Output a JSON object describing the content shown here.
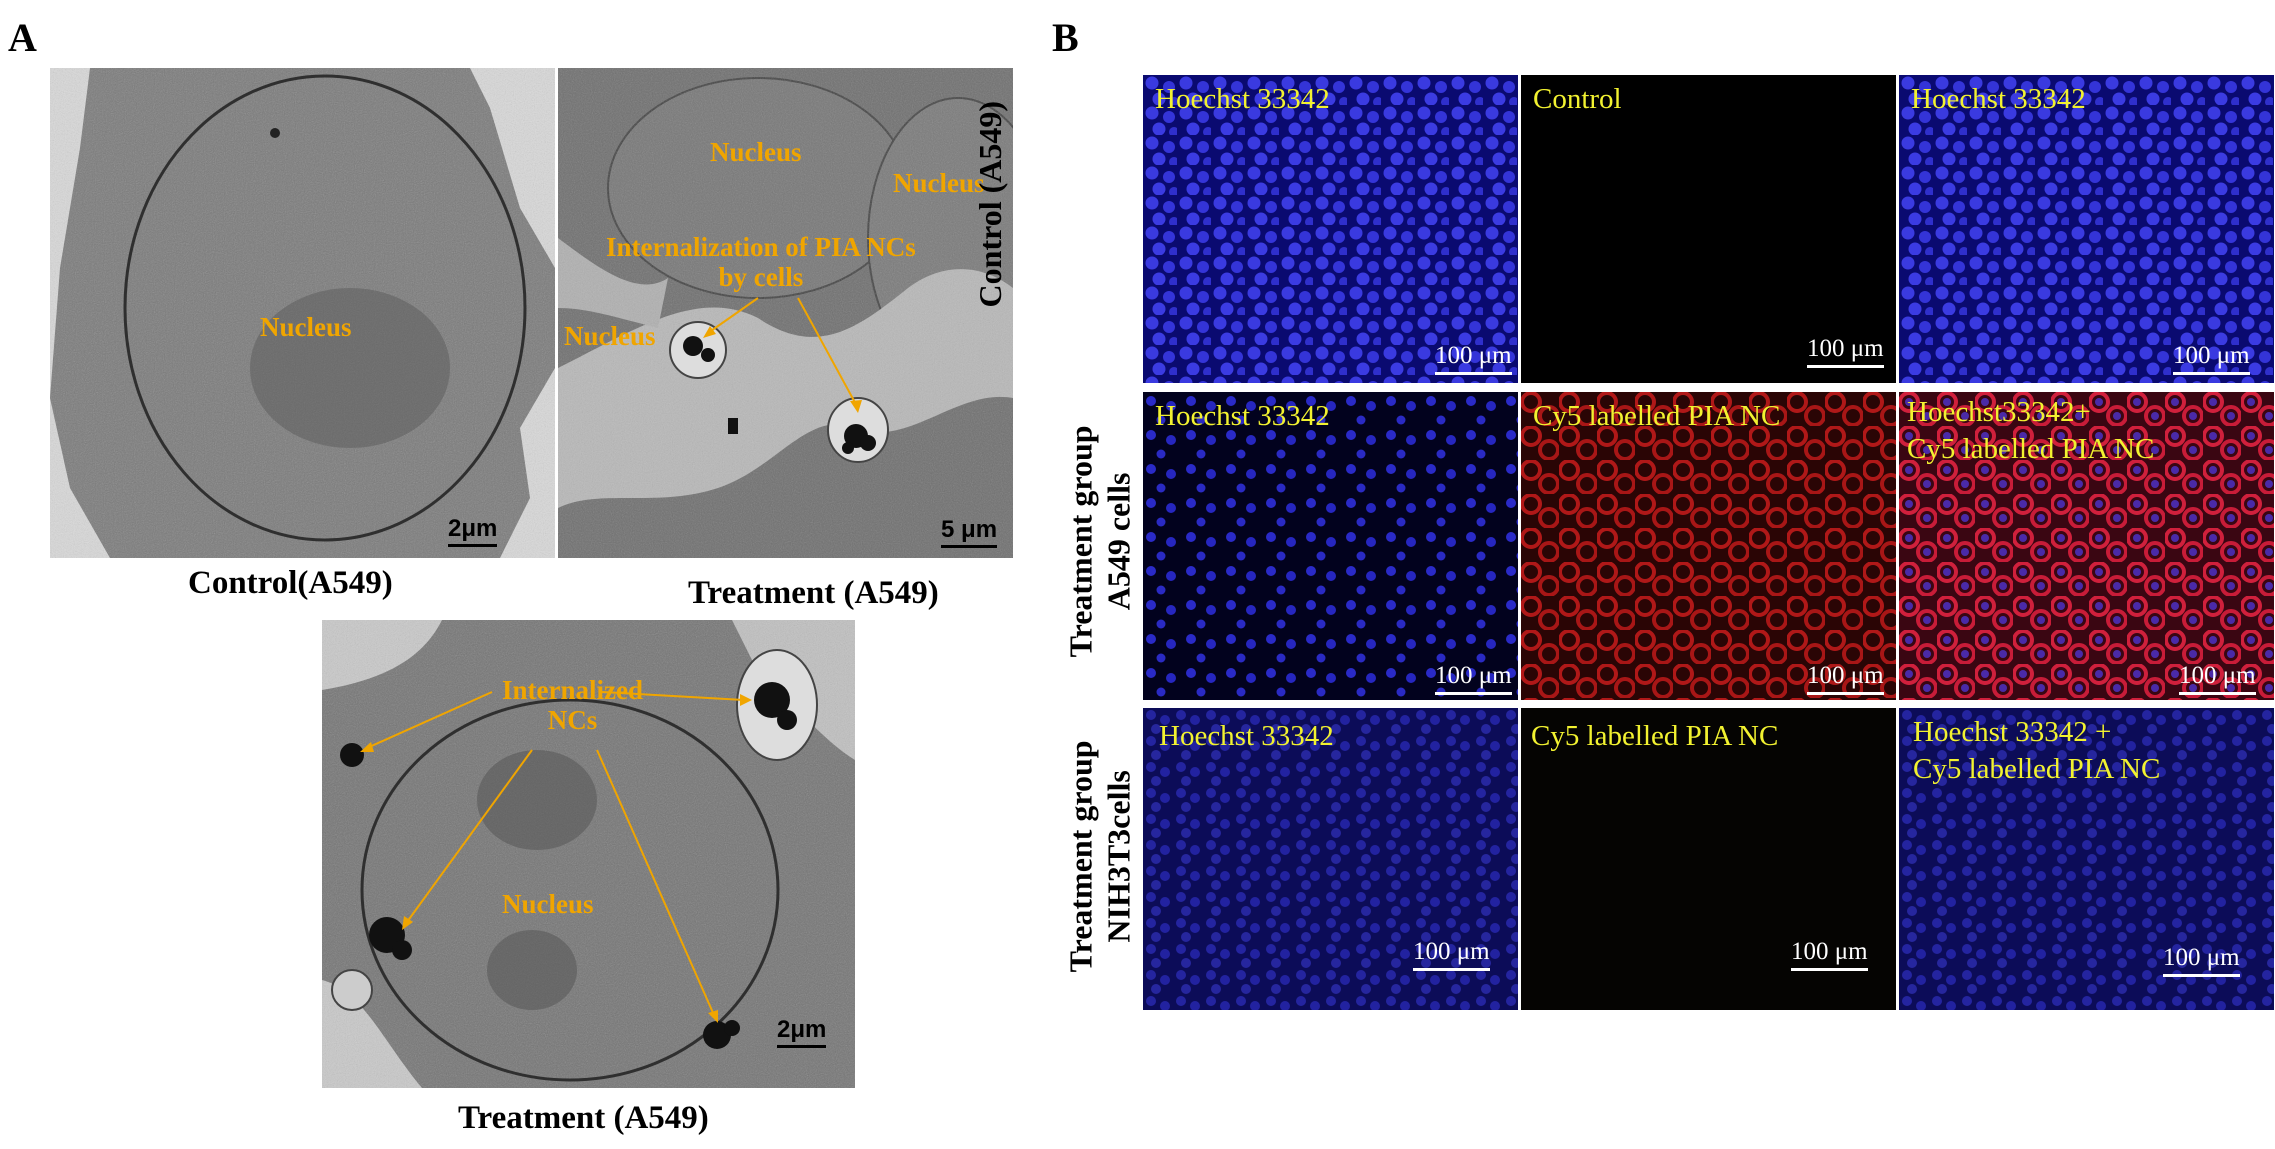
{
  "panel_a": {
    "letter": "A",
    "img1": {
      "labels": {
        "nucleus": "Nucleus"
      },
      "scale": "2μm",
      "caption": "Control(A549)"
    },
    "img2": {
      "labels": {
        "nucleus_top": "Nucleus",
        "nucleus_right": "Nucleus",
        "internalization": "Internalization  of PIA NCs\nby cells",
        "nucleus_left": "Nucleus"
      },
      "scale": "5 μm",
      "caption": "Treatment (A549)"
    },
    "img3": {
      "labels": {
        "internalized": "Internalized\nNCs",
        "nucleus": "Nucleus"
      },
      "scale": "2μm",
      "caption": "Treatment (A549)"
    },
    "label_color": "#f0a500"
  },
  "panel_b": {
    "letter": "B",
    "label_color": "#f2f230",
    "rows": [
      {
        "label": "Control (A549)",
        "cells": [
          {
            "label": "Hoechst  33342",
            "scale": "100 μm",
            "tint": "blue"
          },
          {
            "label": "Control",
            "scale": "100 μm",
            "tint": "black"
          },
          {
            "label": "Hoechst  33342",
            "scale": "100 μm",
            "tint": "blue"
          }
        ]
      },
      {
        "label": "Treatment group\nA549 cells",
        "cells": [
          {
            "label": "Hoechst  33342",
            "scale": "100 μm",
            "tint": "blue-dark"
          },
          {
            "label": "Cy5  labelled  PIA  NC",
            "scale": "100 μm",
            "tint": "red"
          },
          {
            "label": "Hoechst33342+\nCy5  labelled  PIA  NC",
            "scale": "100 μm",
            "tint": "merge"
          }
        ]
      },
      {
        "label": "Treatment group\nNIH3T3cells",
        "cells": [
          {
            "label": "Hoechst  33342",
            "scale": "100 μm",
            "tint": "blue-dim"
          },
          {
            "label": "Cy5  labelled  PIA  NC",
            "scale": "100 μm",
            "tint": "black"
          },
          {
            "label": "Hoechst  33342 +\nCy5  labelled  PIA  NC",
            "scale": "100 μm",
            "tint": "blue-dim"
          }
        ]
      }
    ]
  }
}
